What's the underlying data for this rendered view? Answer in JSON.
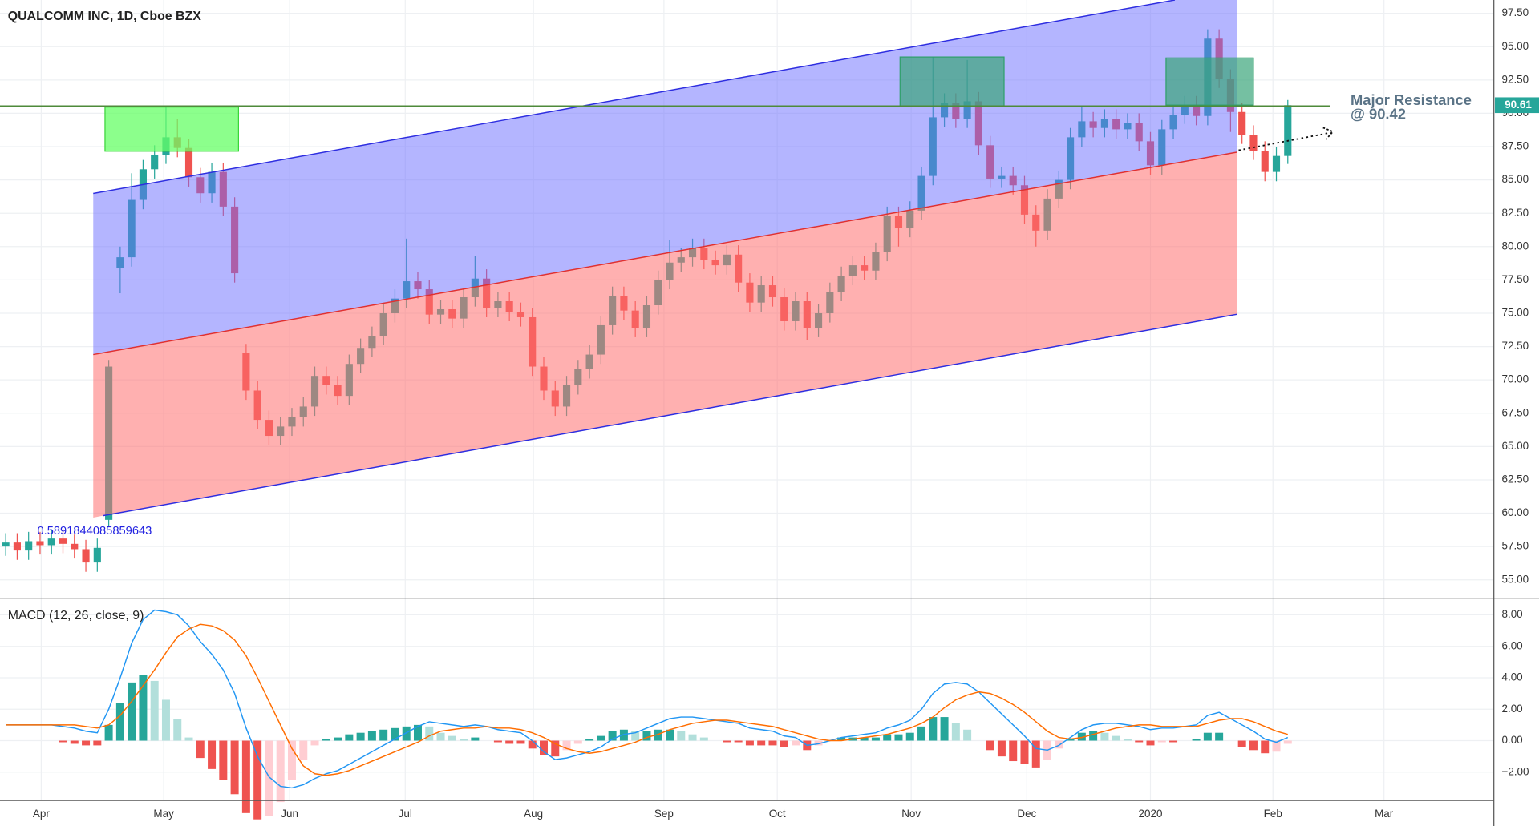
{
  "chart_data": {
    "type": "candlestick",
    "title": "QUALCOMM INC, 1D, Cboe BZX",
    "open": [
      57.5,
      57.8,
      57.2,
      57.9,
      57.6,
      58.1,
      57.7,
      57.3,
      56.3,
      59.5,
      78.4,
      79.2,
      83.5,
      85.8,
      86.9,
      88.2,
      87.4,
      85.2,
      84.0,
      85.6,
      83.0,
      72.0,
      69.2,
      67.0,
      65.8,
      66.5,
      67.2,
      68.0,
      70.3,
      69.6,
      68.8,
      71.2,
      72.4,
      73.3,
      75.0,
      76.1,
      77.4,
      76.8,
      74.9,
      75.3,
      74.6,
      76.2,
      77.6,
      75.4,
      75.9,
      75.1,
      74.7,
      71.0,
      69.2,
      68.0,
      69.6,
      70.8,
      71.9,
      74.1,
      76.3,
      75.2,
      73.9,
      75.6,
      77.5,
      78.8,
      79.2,
      79.9,
      79.0,
      78.6,
      79.4,
      77.3,
      75.8,
      77.1,
      76.2,
      74.4,
      75.9,
      73.9,
      75.0,
      76.6,
      77.8,
      78.6,
      78.2,
      79.6,
      82.3,
      81.4,
      82.7,
      85.3,
      89.7,
      90.8,
      89.6,
      90.9,
      87.6,
      85.1,
      85.3,
      84.6,
      82.4,
      81.2,
      83.6,
      85.0,
      88.2,
      89.4,
      88.9,
      89.6,
      88.8,
      89.3,
      87.9,
      86.1,
      88.8,
      89.9,
      90.6,
      89.8,
      95.6,
      92.6,
      90.1,
      88.4,
      87.2,
      85.6,
      86.8
    ],
    "high": [
      58.5,
      58.5,
      58.6,
      58.6,
      58.8,
      58.8,
      58.4,
      58.0,
      58.1,
      71.5,
      80.0,
      85.5,
      86.5,
      87.6,
      90.5,
      89.6,
      88.1,
      85.9,
      86.3,
      86.3,
      83.7,
      72.7,
      69.9,
      67.7,
      67.2,
      67.9,
      68.7,
      71.0,
      71.0,
      70.3,
      71.9,
      73.1,
      74.0,
      75.7,
      76.8,
      80.6,
      78.1,
      77.5,
      76.0,
      76.0,
      76.9,
      79.3,
      78.3,
      76.6,
      76.6,
      75.8,
      75.4,
      71.7,
      69.9,
      70.3,
      71.5,
      72.6,
      74.8,
      77.0,
      77.0,
      75.9,
      76.3,
      78.2,
      80.5,
      79.9,
      80.6,
      80.6,
      79.7,
      80.1,
      80.1,
      78.0,
      77.8,
      77.8,
      76.9,
      76.6,
      76.6,
      75.7,
      77.3,
      78.5,
      79.3,
      79.3,
      80.3,
      83.0,
      83.0,
      83.4,
      86.0,
      94.2,
      91.5,
      91.5,
      94.0,
      91.6,
      88.3,
      86.0,
      86.0,
      85.3,
      83.1,
      84.3,
      85.7,
      88.9,
      90.5,
      90.1,
      90.3,
      90.3,
      90.0,
      90.0,
      88.6,
      89.5,
      90.6,
      91.3,
      91.3,
      96.3,
      96.3,
      93.3,
      90.8,
      89.1,
      87.9,
      87.5,
      91.0
    ],
    "low": [
      56.8,
      56.5,
      56.5,
      56.9,
      56.9,
      57.0,
      56.6,
      55.6,
      55.6,
      59.0,
      76.5,
      78.5,
      82.8,
      85.1,
      86.2,
      86.7,
      84.5,
      83.3,
      83.3,
      82.3,
      77.3,
      68.5,
      66.3,
      65.1,
      65.1,
      65.8,
      66.5,
      67.3,
      68.9,
      68.1,
      68.1,
      70.5,
      71.7,
      72.6,
      74.3,
      75.4,
      76.1,
      74.2,
      74.2,
      73.9,
      73.9,
      75.5,
      74.7,
      74.7,
      74.4,
      74.0,
      70.3,
      68.5,
      67.3,
      67.3,
      68.9,
      70.1,
      71.2,
      73.4,
      74.5,
      73.2,
      73.2,
      74.9,
      76.8,
      78.1,
      78.5,
      78.3,
      77.9,
      77.9,
      76.6,
      75.1,
      75.1,
      75.5,
      73.7,
      73.7,
      73.0,
      73.2,
      74.3,
      75.9,
      77.1,
      77.5,
      77.5,
      78.9,
      80.0,
      80.7,
      82.0,
      84.6,
      89.0,
      88.9,
      88.9,
      86.9,
      84.4,
      84.4,
      83.9,
      81.7,
      80.0,
      80.5,
      82.9,
      84.3,
      87.5,
      88.2,
      88.2,
      88.1,
      88.1,
      87.2,
      85.4,
      85.4,
      88.1,
      89.2,
      89.1,
      89.1,
      91.9,
      88.6,
      87.7,
      86.5,
      84.9,
      84.9,
      86.2
    ],
    "close": [
      57.8,
      57.2,
      57.9,
      57.6,
      58.1,
      57.7,
      57.3,
      56.3,
      57.4,
      71.0,
      79.2,
      83.5,
      85.8,
      86.9,
      88.2,
      87.4,
      85.2,
      84.0,
      85.6,
      83.0,
      78.0,
      69.2,
      67.0,
      65.8,
      66.5,
      67.2,
      68.0,
      70.3,
      69.6,
      68.8,
      71.2,
      72.4,
      73.3,
      75.0,
      76.1,
      77.4,
      76.8,
      74.9,
      75.3,
      74.6,
      76.2,
      77.6,
      75.4,
      75.9,
      75.1,
      74.7,
      71.0,
      69.2,
      68.0,
      69.6,
      70.8,
      71.9,
      74.1,
      76.3,
      75.2,
      73.9,
      75.6,
      77.5,
      78.8,
      79.2,
      79.9,
      79.0,
      78.6,
      79.4,
      77.3,
      75.8,
      77.1,
      76.2,
      74.4,
      75.9,
      73.9,
      75.0,
      76.6,
      77.8,
      78.6,
      78.2,
      79.6,
      82.3,
      81.4,
      82.7,
      85.3,
      89.7,
      90.8,
      89.6,
      90.9,
      87.6,
      85.1,
      85.3,
      84.6,
      82.4,
      81.2,
      83.6,
      85.0,
      88.2,
      89.4,
      88.9,
      89.6,
      88.8,
      89.3,
      87.9,
      86.1,
      88.8,
      89.9,
      90.6,
      89.8,
      95.6,
      92.6,
      90.1,
      88.4,
      87.2,
      85.6,
      86.8,
      90.61
    ],
    "up_color": "#26a69a",
    "down_color": "#ef5350",
    "xlim": [
      -0.5,
      130
    ],
    "xticks": [
      {
        "value": 3.1,
        "label": "Apr"
      },
      {
        "value": 13.8,
        "label": "May"
      },
      {
        "value": 24.8,
        "label": "Jun"
      },
      {
        "value": 34.9,
        "label": "Jul"
      },
      {
        "value": 46.1,
        "label": "Aug"
      },
      {
        "value": 57.5,
        "label": "Sep"
      },
      {
        "value": 67.4,
        "label": "Oct"
      },
      {
        "value": 79.1,
        "label": "Nov"
      },
      {
        "value": 89.2,
        "label": "Dec"
      },
      {
        "value": 100.0,
        "label": "2020"
      },
      {
        "value": 110.7,
        "label": "Feb"
      },
      {
        "value": 120.4,
        "label": "Mar"
      }
    ],
    "ylim": [
      53.7,
      98.5
    ],
    "yticks": [
      {
        "value": 55,
        "label": "55.00"
      },
      {
        "value": 57.5,
        "label": "57.50"
      },
      {
        "value": 60,
        "label": "60.00"
      },
      {
        "value": 62.5,
        "label": "62.50"
      },
      {
        "value": 65,
        "label": "65.00"
      },
      {
        "value": 67.5,
        "label": "67.50"
      },
      {
        "value": 70,
        "label": "70.00"
      },
      {
        "value": 72.5,
        "label": "72.50"
      },
      {
        "value": 75,
        "label": "75.00"
      },
      {
        "value": 77.5,
        "label": "77.50"
      },
      {
        "value": 80,
        "label": "80.00"
      },
      {
        "value": 82.5,
        "label": "82.50"
      },
      {
        "value": 85,
        "label": "85.00"
      },
      {
        "value": 87.5,
        "label": "87.50"
      },
      {
        "value": 90,
        "label": "90.00"
      },
      {
        "value": 92.5,
        "label": "92.50"
      },
      {
        "value": 95,
        "label": "95.00"
      },
      {
        "value": 97.5,
        "label": "97.50"
      }
    ],
    "grid": true,
    "last_price_color": "#26a69a",
    "annotations": [
      "0.5891844085859643",
      "Major Resistance",
      "@ 90.42"
    ],
    "indicator": {
      "title": "MACD (12, 26, close, 9)",
      "ylim": [
        -3.8,
        9
      ],
      "yticks": [
        {
          "value": -2,
          "label": "−2.00"
        },
        {
          "value": 0,
          "label": "0.00"
        },
        {
          "value": 2,
          "label": "2.00"
        },
        {
          "value": 4,
          "label": "4.00"
        },
        {
          "value": 6,
          "label": "6.00"
        },
        {
          "value": 8,
          "label": "8.00"
        }
      ],
      "macd": {
        "color": "#2196f3",
        "values": [
          1.0,
          1.0,
          1.0,
          1.0,
          1.0,
          0.9,
          0.8,
          0.6,
          0.5,
          2.0,
          4.0,
          6.2,
          7.7,
          8.3,
          8.2,
          8.0,
          7.3,
          6.3,
          5.5,
          4.5,
          3.0,
          0.8,
          -1.0,
          -2.3,
          -2.9,
          -3.0,
          -2.8,
          -2.4,
          -2.1,
          -1.9,
          -1.5,
          -1.1,
          -0.7,
          -0.3,
          0.1,
          0.5,
          0.9,
          1.2,
          1.1,
          1.0,
          0.9,
          1.0,
          0.9,
          0.7,
          0.6,
          0.5,
          0.0,
          -0.7,
          -1.2,
          -1.1,
          -0.9,
          -0.7,
          -0.4,
          0.1,
          0.4,
          0.5,
          0.8,
          1.1,
          1.4,
          1.5,
          1.5,
          1.4,
          1.3,
          1.2,
          1.1,
          0.8,
          0.7,
          0.6,
          0.3,
          0.2,
          -0.3,
          -0.2,
          0.0,
          0.2,
          0.3,
          0.4,
          0.5,
          0.8,
          1.0,
          1.3,
          2.0,
          3.0,
          3.6,
          3.7,
          3.6,
          3.1,
          2.4,
          1.7,
          1.0,
          0.3,
          -0.5,
          -0.6,
          -0.3,
          0.2,
          0.7,
          1.0,
          1.1,
          1.1,
          1.0,
          0.9,
          0.7,
          0.8,
          0.8,
          0.9,
          1.0,
          1.6,
          1.8,
          1.4,
          1.0,
          0.6,
          0.1,
          -0.1,
          0.2
        ]
      },
      "signal": {
        "color": "#ff6d00",
        "values": [
          1.0,
          1.0,
          1.0,
          1.0,
          1.0,
          1.0,
          1.0,
          0.9,
          0.8,
          1.0,
          1.6,
          2.5,
          3.5,
          4.5,
          5.6,
          6.6,
          7.1,
          7.4,
          7.3,
          7.0,
          6.4,
          5.4,
          4.0,
          2.5,
          1.0,
          -0.5,
          -1.6,
          -2.1,
          -2.2,
          -2.1,
          -1.9,
          -1.6,
          -1.3,
          -1.0,
          -0.7,
          -0.4,
          -0.1,
          0.3,
          0.6,
          0.7,
          0.8,
          0.8,
          0.9,
          0.8,
          0.8,
          0.7,
          0.5,
          0.2,
          -0.2,
          -0.5,
          -0.7,
          -0.8,
          -0.7,
          -0.5,
          -0.3,
          -0.1,
          0.2,
          0.4,
          0.7,
          0.9,
          1.1,
          1.2,
          1.3,
          1.3,
          1.2,
          1.1,
          1.0,
          0.9,
          0.7,
          0.5,
          0.3,
          0.1,
          0.0,
          0.0,
          0.1,
          0.2,
          0.3,
          0.4,
          0.6,
          0.8,
          1.1,
          1.5,
          2.1,
          2.6,
          2.9,
          3.1,
          3.0,
          2.7,
          2.3,
          1.8,
          1.2,
          0.6,
          0.2,
          0.1,
          0.2,
          0.4,
          0.6,
          0.8,
          0.9,
          1.0,
          1.0,
          0.9,
          0.9,
          0.9,
          0.9,
          1.1,
          1.3,
          1.4,
          1.4,
          1.2,
          0.9,
          0.6,
          0.4
        ]
      },
      "histogram": {
        "colors": [
          "#26a69a",
          "#b2dfdb",
          "#ffcdd2",
          "#ef5350"
        ],
        "values": [
          0,
          0,
          0,
          0,
          0,
          -0.1,
          -0.2,
          -0.3,
          -0.3,
          1.0,
          2.4,
          3.7,
          4.2,
          3.8,
          2.6,
          1.4,
          0.2,
          -1.1,
          -1.8,
          -2.5,
          -3.4,
          -4.6,
          -5.0,
          -4.8,
          -3.9,
          -2.5,
          -1.2,
          -0.3,
          0.1,
          0.2,
          0.4,
          0.5,
          0.6,
          0.7,
          0.8,
          0.9,
          1.0,
          0.9,
          0.5,
          0.3,
          0.1,
          0.2,
          0.0,
          -0.1,
          -0.2,
          -0.2,
          -0.5,
          -0.9,
          -1.0,
          -0.6,
          -0.2,
          0.1,
          0.3,
          0.6,
          0.7,
          0.6,
          0.6,
          0.7,
          0.7,
          0.6,
          0.4,
          0.2,
          0.0,
          -0.1,
          -0.1,
          -0.3,
          -0.3,
          -0.3,
          -0.4,
          -0.3,
          -0.6,
          -0.3,
          0.0,
          0.2,
          0.2,
          0.2,
          0.2,
          0.4,
          0.4,
          0.5,
          0.9,
          1.5,
          1.5,
          1.1,
          0.7,
          0.0,
          -0.6,
          -1.0,
          -1.3,
          -1.5,
          -1.7,
          -1.2,
          -0.5,
          0.1,
          0.5,
          0.6,
          0.5,
          0.3,
          0.1,
          -0.1,
          -0.3,
          -0.1,
          -0.1,
          0.0,
          0.1,
          0.5,
          0.5,
          0.0,
          -0.4,
          -0.6,
          -0.8,
          -0.7,
          -0.2
        ]
      }
    }
  }
}
